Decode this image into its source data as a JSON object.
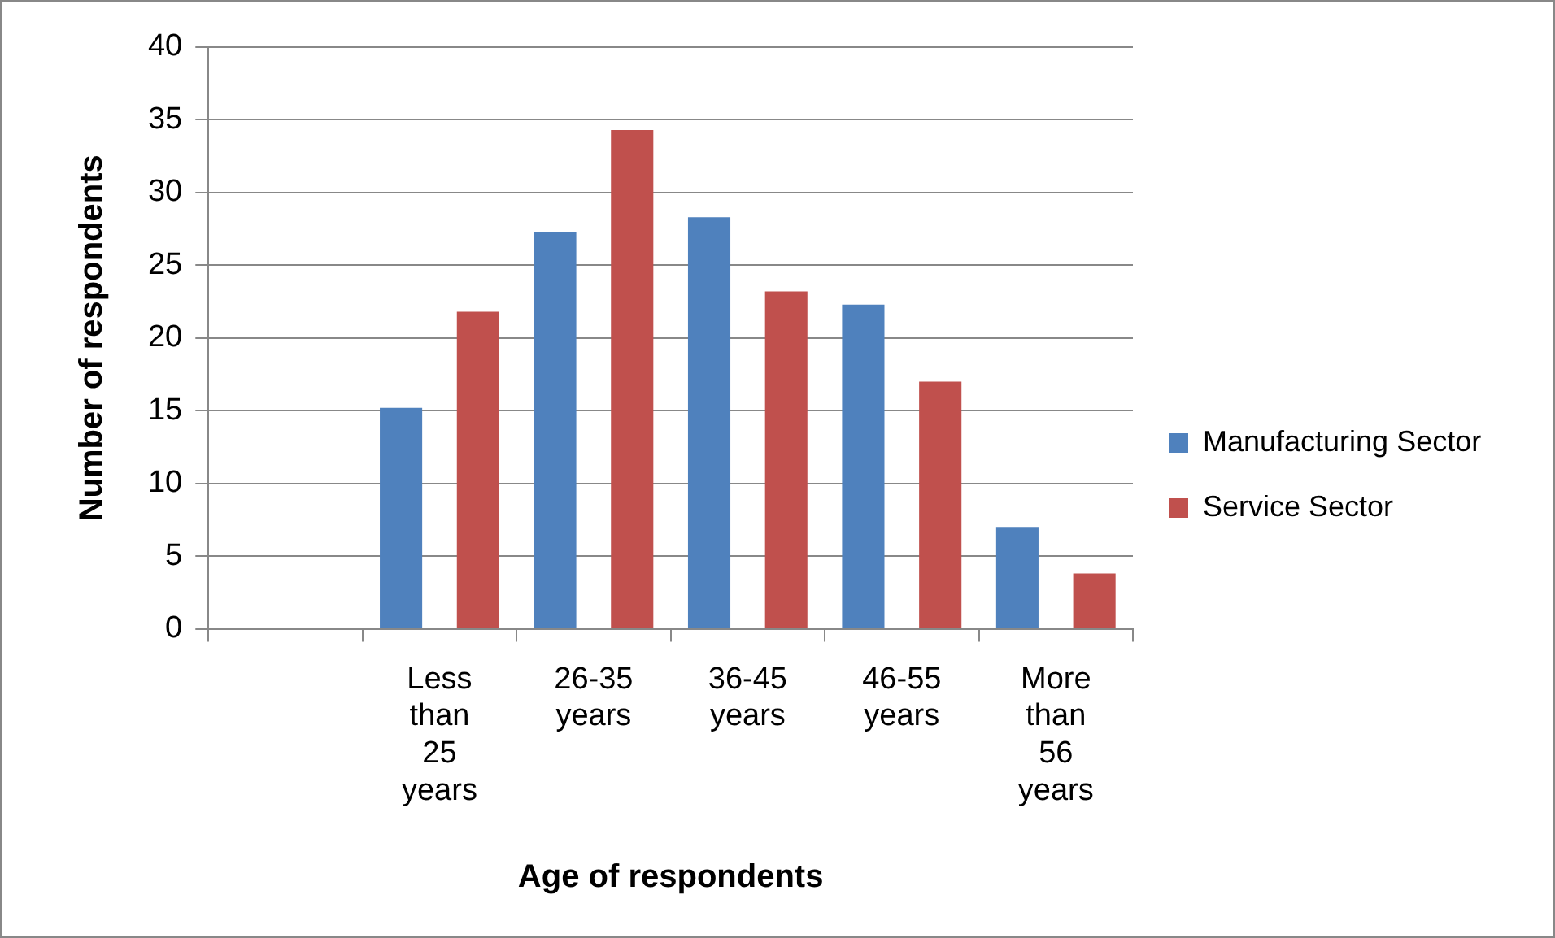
{
  "chart_data": {
    "type": "bar",
    "xlabel": "Age of respondents",
    "ylabel": "Number of respondents",
    "categories": [
      null,
      "Less than 25 years",
      "26-35 years",
      "36-45 years",
      "46-55 years",
      "More than 56 years"
    ],
    "series": [
      {
        "name": "Manufacturing Sector",
        "color": "#4f81bd",
        "values": [
          null,
          15.2,
          27.3,
          28.3,
          22.3,
          7
        ]
      },
      {
        "name": "Service Sector",
        "color": "#c0504d",
        "values": [
          null,
          21.8,
          34.3,
          23.2,
          17,
          3.8
        ]
      }
    ],
    "ylim": [
      0,
      40
    ],
    "yticks": [
      0,
      5,
      10,
      15,
      20,
      25,
      30,
      35,
      40
    ],
    "grid": "y",
    "legend": "right"
  }
}
